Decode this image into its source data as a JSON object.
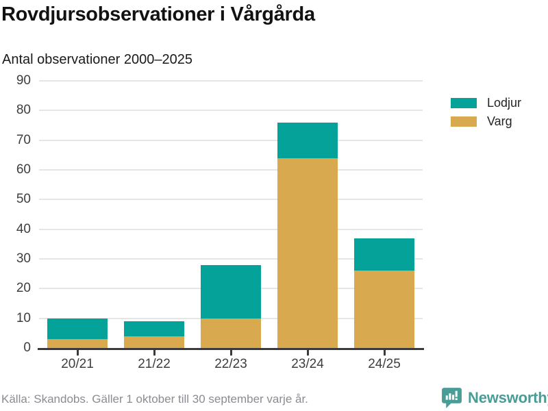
{
  "header": {
    "title": "Rovdjursobservationer i Vårgårda",
    "subtitle": "Antal observationer 2000–2025"
  },
  "chart_data": {
    "type": "bar",
    "stacked": true,
    "title": "Rovdjursobservationer i Vårgårda",
    "subtitle": "Antal observationer 2000–2025",
    "categories": [
      "20/21",
      "21/22",
      "22/23",
      "23/24",
      "24/25"
    ],
    "series": [
      {
        "name": "Varg",
        "color": "#d9a950",
        "values": [
          3,
          4,
          10,
          64,
          26
        ]
      },
      {
        "name": "Lodjur",
        "color": "#05a29a",
        "values": [
          7,
          5,
          18,
          12,
          11
        ]
      }
    ],
    "stack_totals": [
      10,
      9,
      28,
      76,
      37
    ],
    "xlabel": "",
    "ylabel": "",
    "ylim": [
      0,
      90
    ],
    "ytick_step": 10,
    "grid": true,
    "legend_position": "top-right"
  },
  "legend": {
    "items": [
      {
        "label": "Lodjur",
        "color": "#05a29a"
      },
      {
        "label": "Varg",
        "color": "#d9a950"
      }
    ]
  },
  "footer": {
    "source": "Källa: Skandobs. Gäller 1 oktober till 30 september varje år.",
    "brand": "Newsworthy"
  },
  "colors": {
    "lodjur": "#05a29a",
    "varg": "#d9a950",
    "axis": "#3a3a3a",
    "gridline": "#e5e5e5",
    "title_text": "#121212",
    "label_text": "#3d3d3d",
    "footer_text": "#8b8b92",
    "brand_teal": "#4a9c97",
    "background": "#ffffff"
  }
}
